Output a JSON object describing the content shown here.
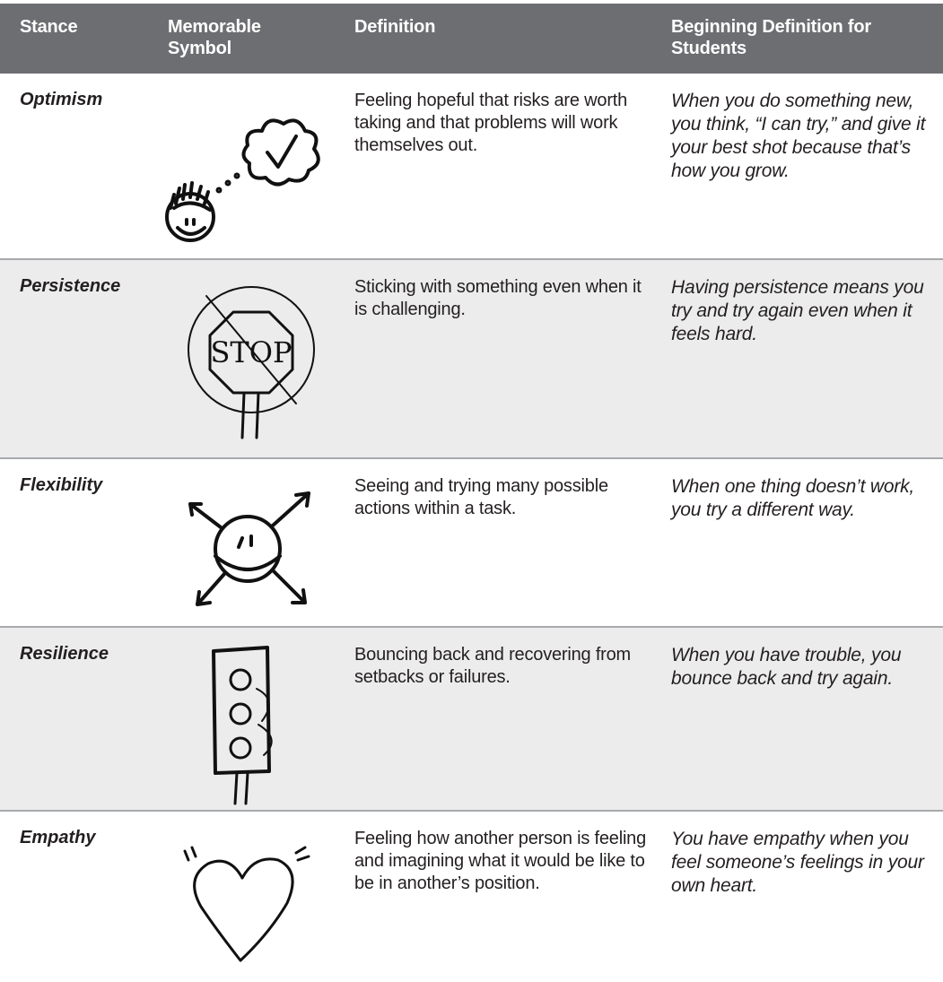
{
  "table": {
    "header": [
      "Stance",
      "Memorable Symbol",
      "Definition",
      "Beginning Definition for Students"
    ],
    "rows": [
      {
        "stance": "Optimism",
        "definition": "Feeling hopeful that risks are worth taking and that problems will work themselves out.",
        "student": "When you do something new, you think, “I can try,” and give it your best shot because that’s how you grow."
      },
      {
        "stance": "Persistence",
        "symbol_text": "STOP",
        "definition": "Sticking with something even when it is challenging.",
        "student": "Having persistence means you try and try again even when it feels hard."
      },
      {
        "stance": "Flexibility",
        "definition": "Seeing and trying many possible actions within a task.",
        "student": "When one thing doesn’t work, you try a different way."
      },
      {
        "stance": "Resilience",
        "definition": "Bouncing back and recovering from setbacks or failures.",
        "student": "When you have trouble, you bounce back and try again."
      },
      {
        "stance": "Empathy",
        "definition": "Feeling how another person is feeling and imagining what it would be like to be in another’s position.",
        "student": "You have empathy when you feel someone’s feelings in your own heart."
      }
    ]
  }
}
